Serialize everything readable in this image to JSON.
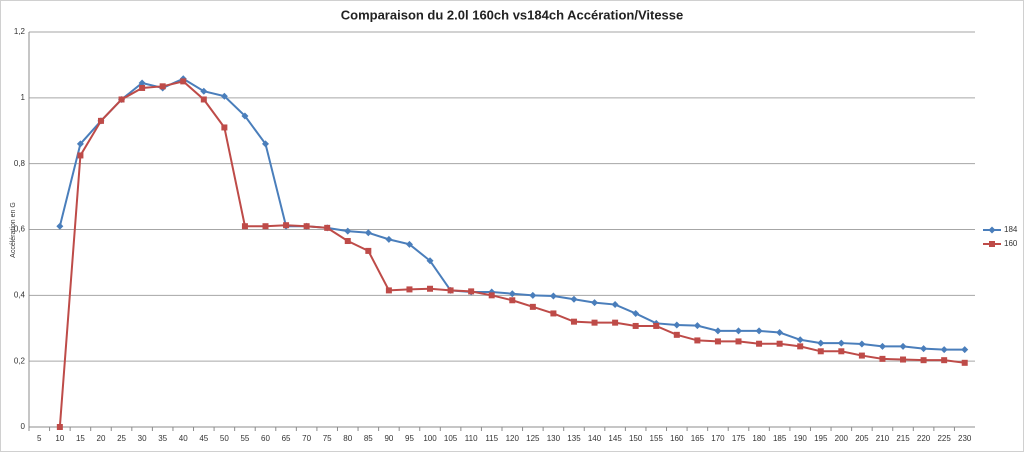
{
  "chart_data": {
    "type": "line",
    "title": "Comparaison du 2.0l 160ch vs184ch Accération/Vitesse",
    "y_label": "Accélération en G",
    "categories": [
      "5",
      "10",
      "15",
      "20",
      "25",
      "30",
      "35",
      "40",
      "45",
      "50",
      "55",
      "60",
      "65",
      "70",
      "75",
      "80",
      "85",
      "90",
      "95",
      "100",
      "105",
      "110",
      "115",
      "120",
      "125",
      "130",
      "135",
      "140",
      "145",
      "150",
      "155",
      "160",
      "165",
      "170",
      "175",
      "180",
      "185",
      "190",
      "195",
      "200",
      "205",
      "210",
      "215",
      "220",
      "225",
      "230"
    ],
    "series": [
      {
        "name": "184",
        "color": "#4a7ebb",
        "marker": "diamond",
        "values": [
          null,
          0.61,
          0.86,
          0.93,
          0.995,
          1.045,
          1.03,
          1.058,
          1.02,
          1.005,
          0.945,
          0.86,
          0.61,
          0.61,
          0.605,
          0.595,
          0.59,
          0.57,
          0.555,
          0.505,
          0.415,
          0.41,
          0.41,
          0.405,
          0.4,
          0.398,
          0.388,
          0.378,
          0.372,
          0.345,
          0.315,
          0.31,
          0.308,
          0.292,
          0.292,
          0.292,
          0.287,
          0.265,
          0.255,
          0.255,
          0.252,
          0.245,
          0.245,
          0.238,
          0.235,
          0.235
        ]
      },
      {
        "name": "160",
        "color": "#be4b48",
        "marker": "square",
        "values": [
          null,
          0,
          0.825,
          0.93,
          0.995,
          1.03,
          1.035,
          1.05,
          0.995,
          0.91,
          0.61,
          0.61,
          0.613,
          0.61,
          0.605,
          0.565,
          0.535,
          0.415,
          0.418,
          0.42,
          0.415,
          0.412,
          0.4,
          0.385,
          0.365,
          0.345,
          0.32,
          0.317,
          0.317,
          0.307,
          0.307,
          0.28,
          0.263,
          0.26,
          0.26,
          0.253,
          0.253,
          0.245,
          0.23,
          0.23,
          0.217,
          0.207,
          0.205,
          0.203,
          0.203,
          0.195
        ]
      }
    ],
    "ylim": [
      0,
      1.2
    ],
    "yticks": [
      0,
      {
        "value": 0.2,
        "label": "0,2"
      },
      {
        "value": 0.4,
        "label": "0,4"
      },
      {
        "value": 0.6,
        "label": "0,6"
      },
      {
        "value": 0.8,
        "label": "0,8"
      },
      1,
      {
        "value": 1.2,
        "label": "1,2"
      }
    ],
    "grid": true,
    "legend": "right"
  }
}
